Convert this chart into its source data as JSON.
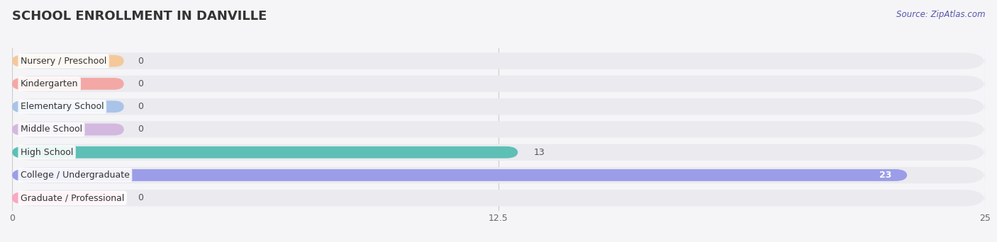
{
  "title": "SCHOOL ENROLLMENT IN DANVILLE",
  "source": "Source: ZipAtlas.com",
  "categories": [
    "Nursery / Preschool",
    "Kindergarten",
    "Elementary School",
    "Middle School",
    "High School",
    "College / Undergraduate",
    "Graduate / Professional"
  ],
  "values": [
    0,
    0,
    0,
    0,
    13,
    23,
    0
  ],
  "bar_colors": [
    "#f5c89a",
    "#f4a8a6",
    "#a9c4e8",
    "#d3b8e0",
    "#5dbfb5",
    "#9b9de8",
    "#f9a8c0"
  ],
  "xlim": [
    0,
    25
  ],
  "xticks": [
    0,
    12.5,
    25
  ],
  "xtick_labels": [
    "0",
    "12.5",
    "25"
  ],
  "title_fontsize": 13,
  "label_fontsize": 9,
  "value_fontsize": 9,
  "background_color": "#f5f5f8",
  "row_bg_color": "#eaeaef"
}
